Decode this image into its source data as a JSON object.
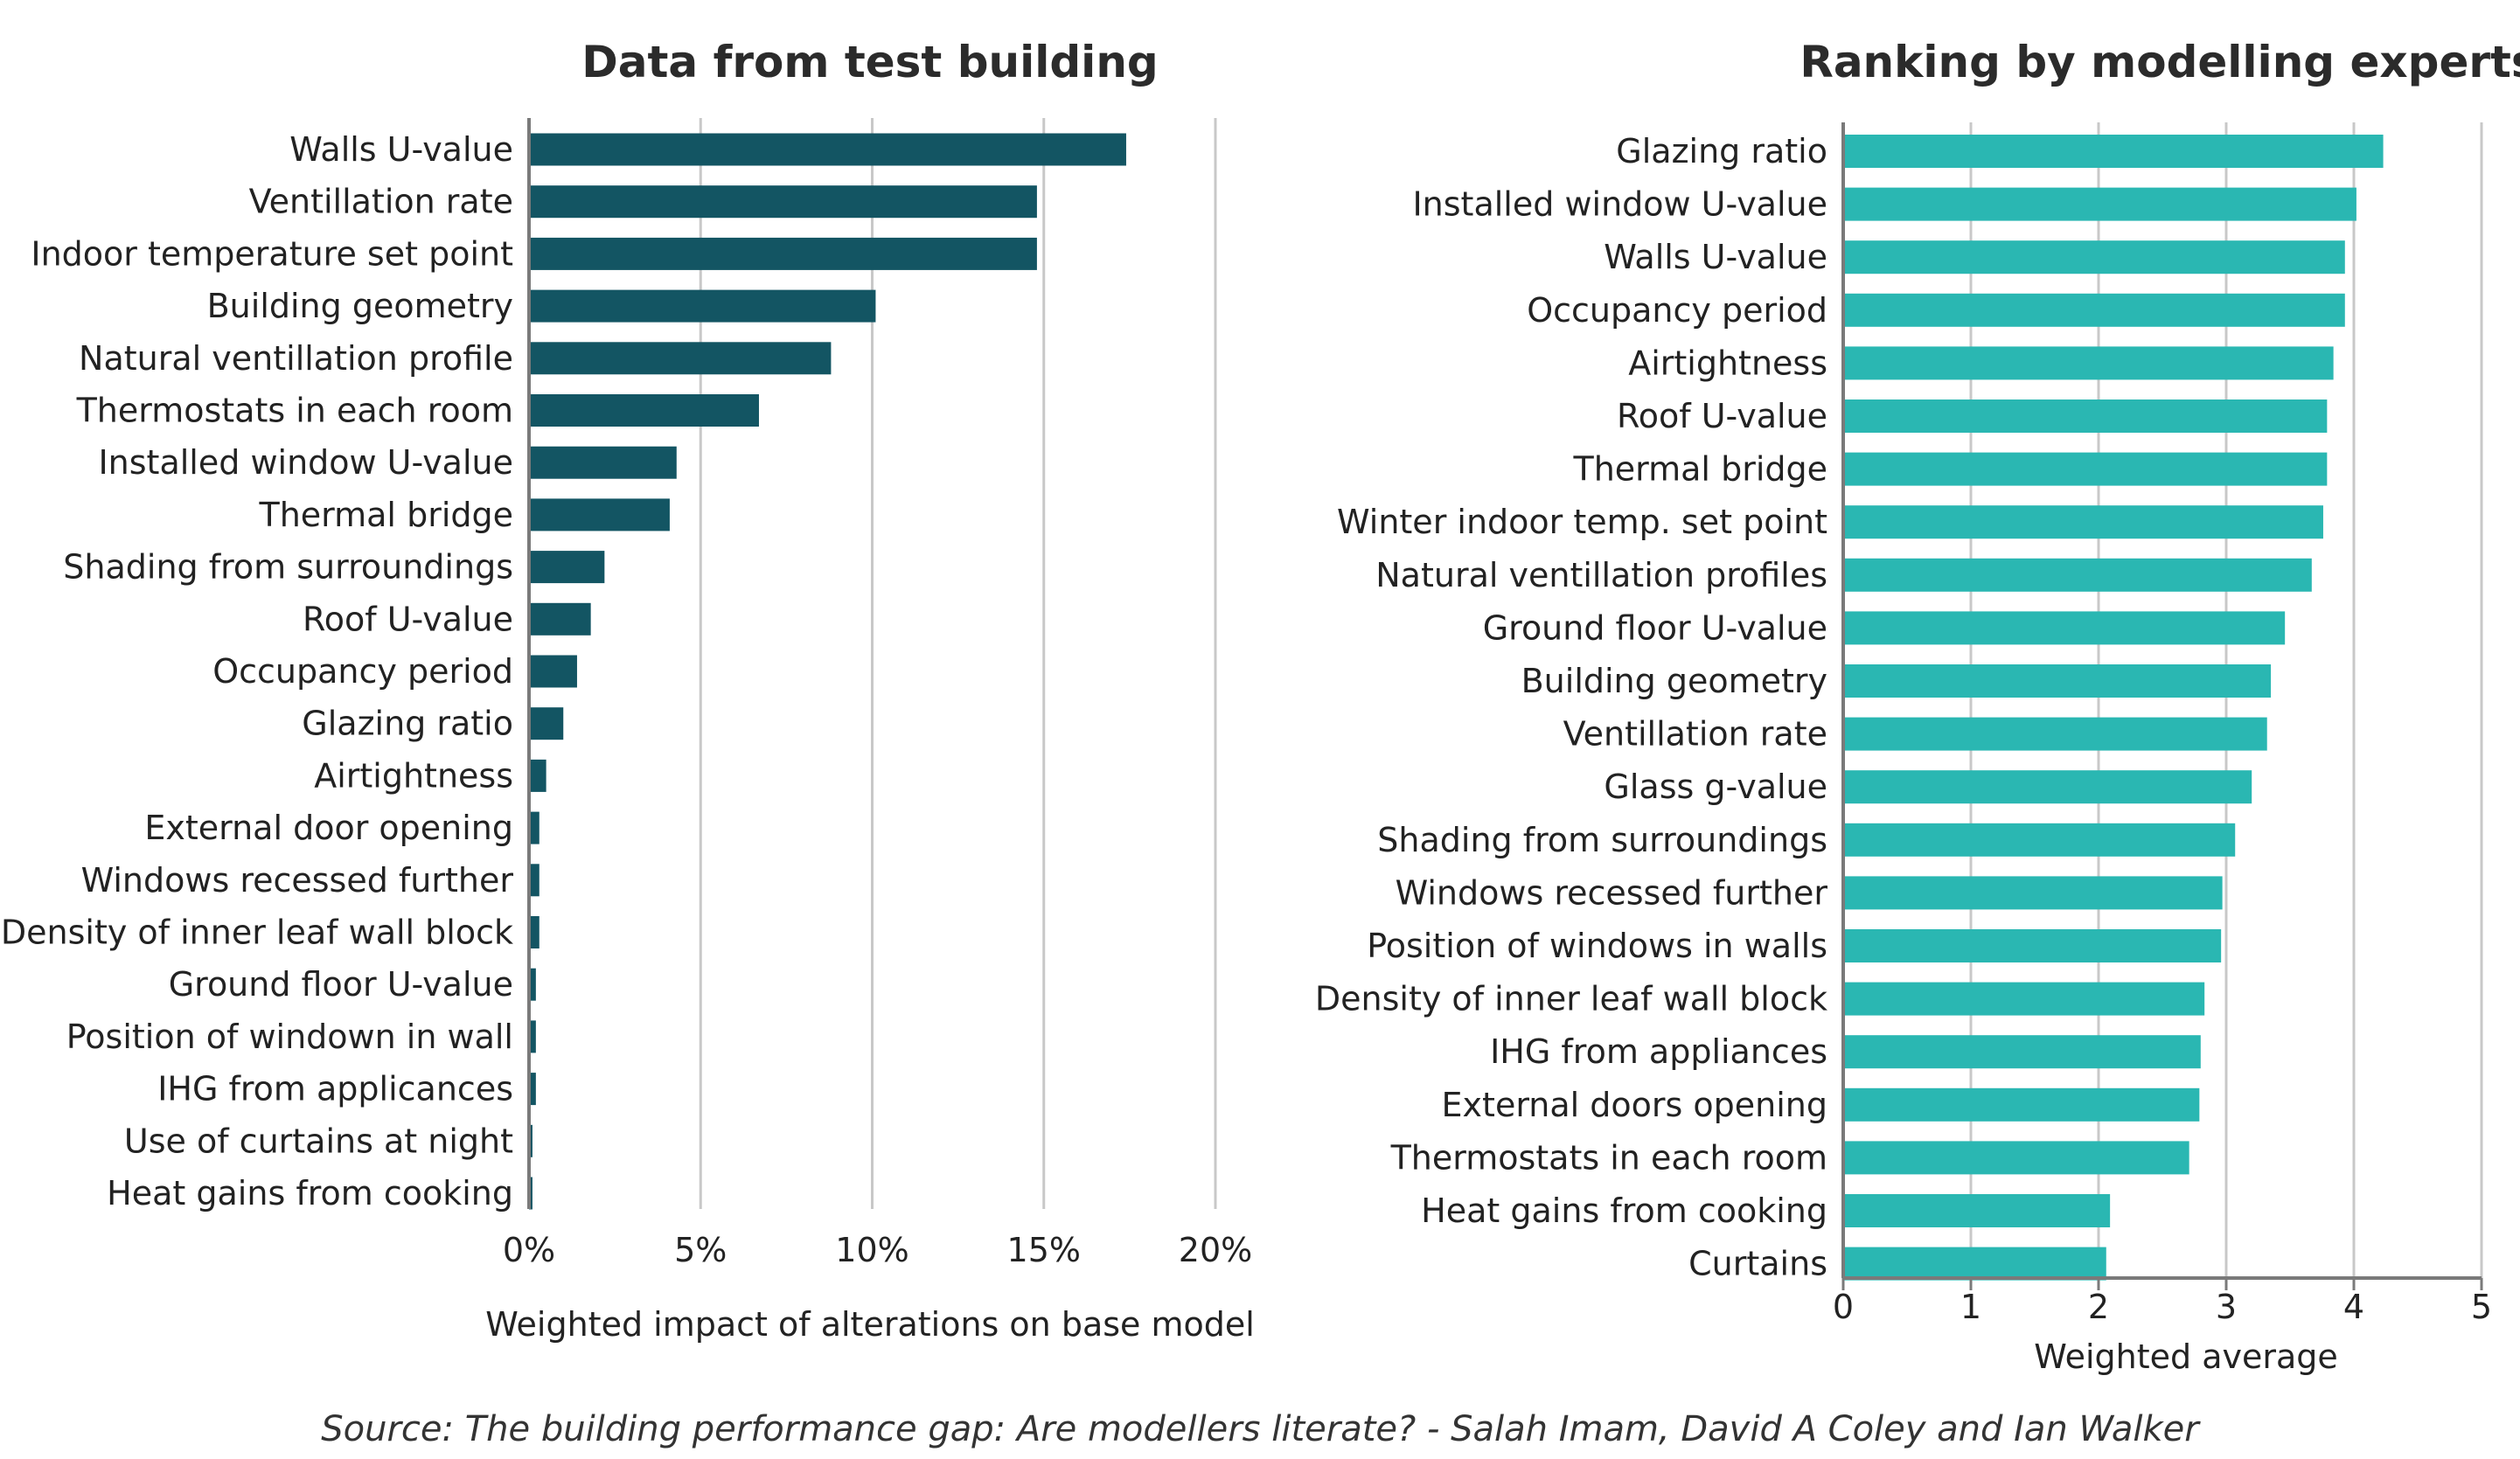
{
  "chart_data": [
    {
      "type": "bar",
      "orientation": "horizontal",
      "title": "Data from test building",
      "xlabel": "Weighted impact of alterations on base model",
      "ylabel": "",
      "xlim": [
        0,
        20
      ],
      "ticks": [
        0,
        5,
        10,
        15,
        20
      ],
      "tick_labels": [
        "0%",
        "5%",
        "10%",
        "15%",
        "20%"
      ],
      "grid": true,
      "categories": [
        "Walls U-value",
        "Ventillation rate",
        "Indoor temperature set point",
        "Building geometry",
        "Natural ventillation profile",
        "Thermostats in each room",
        "Installed window U-value",
        "Thermal bridge",
        "Shading from surroundings",
        "Roof U-value",
        "Occupancy period",
        "Glazing ratio",
        "Airtightness",
        "External door opening",
        "Windows recessed further",
        "Density of inner leaf wall block",
        "Ground floor U-value",
        "Position of windown in wall",
        "IHG from applicances",
        "Use of curtains at night",
        "Heat gains from cooking"
      ],
      "values": [
        17.4,
        14.8,
        14.8,
        10.1,
        8.8,
        6.7,
        4.3,
        4.1,
        2.2,
        1.8,
        1.4,
        1.0,
        0.5,
        0.3,
        0.3,
        0.3,
        0.2,
        0.2,
        0.2,
        0.1,
        0.1
      ],
      "color": "#135563"
    },
    {
      "type": "bar",
      "orientation": "horizontal",
      "title": "Ranking by modelling experts",
      "xlabel": "Weighted average",
      "ylabel": "",
      "xlim": [
        0,
        5
      ],
      "ticks": [
        0,
        1,
        2,
        3,
        4,
        5
      ],
      "tick_labels": [
        "0",
        "1",
        "2",
        "3",
        "4",
        "5"
      ],
      "grid": true,
      "categories": [
        "Glazing ratio",
        "Installed window U-value",
        "Walls U-value",
        "Occupancy period",
        "Airtightness",
        "Roof U-value",
        "Thermal bridge",
        "Winter indoor temp. set point",
        "Natural ventillation profiles",
        "Ground floor U-value",
        "Building geometry",
        "Ventillation rate",
        "Glass g-value",
        "Shading from surroundings",
        "Windows recessed further",
        "Position of windows in walls",
        "Density of inner leaf wall block",
        "IHG from appliances",
        "External doors opening",
        "Thermostats in each room",
        "Heat gains from cooking",
        "Curtains"
      ],
      "values": [
        4.23,
        4.02,
        3.93,
        3.93,
        3.84,
        3.79,
        3.79,
        3.76,
        3.67,
        3.46,
        3.35,
        3.32,
        3.2,
        3.07,
        2.97,
        2.96,
        2.83,
        2.8,
        2.79,
        2.71,
        2.09,
        2.06
      ],
      "color": "#2ab7b2"
    }
  ],
  "source": "Source: The building performance gap: Are modellers literate? - Salah Imam, David A Coley and Ian Walker"
}
